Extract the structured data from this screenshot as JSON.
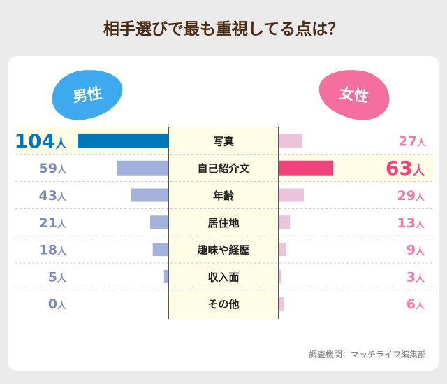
{
  "title": "相手選びで最も重視してる点は？",
  "source": "調査機関：マッチライフ編集部",
  "chart_data": {
    "type": "bar",
    "title": "相手選びで最も重視してる点は？",
    "unit": "人",
    "categories": [
      "写真",
      "自己紹介文",
      "年齢",
      "居住地",
      "趣味や経歴",
      "収入面",
      "その他"
    ],
    "series": [
      {
        "name": "男性",
        "values": [
          104,
          59,
          43,
          21,
          18,
          5,
          0
        ],
        "color": "#a3b2dc",
        "highlight_color": "#0077b8",
        "label_color": "#7b88b8",
        "highlight_index": 0
      },
      {
        "name": "女性",
        "values": [
          27,
          63,
          29,
          13,
          9,
          3,
          6
        ],
        "color": "#ebc3da",
        "highlight_color": "#f0437d",
        "label_color": "#f27aa8",
        "highlight_index": 1
      }
    ]
  }
}
